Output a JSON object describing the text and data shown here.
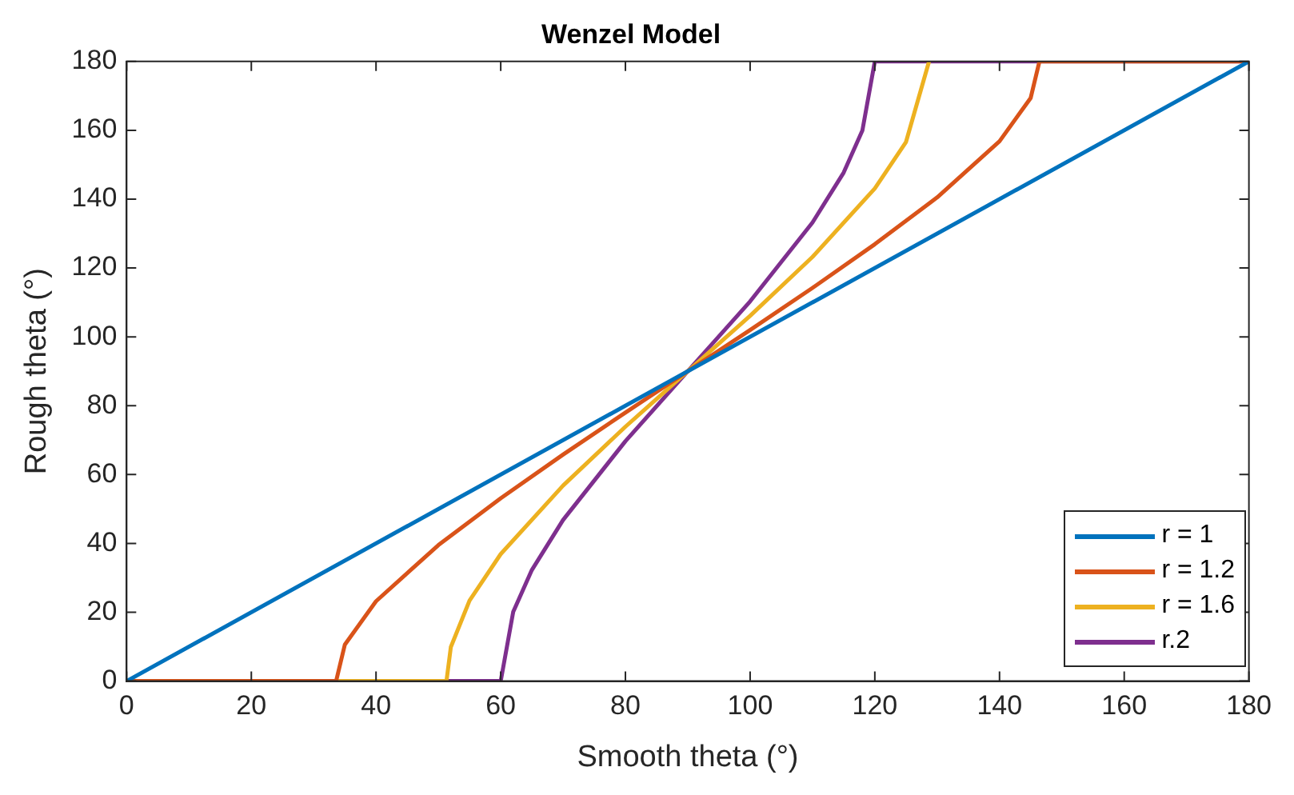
{
  "chart_data": {
    "type": "line",
    "title": "Wenzel Model",
    "xlabel": "Smooth theta (°)",
    "ylabel": "Rough theta (°)",
    "xlim": [
      0,
      180
    ],
    "ylim": [
      0,
      180
    ],
    "xticks": [
      0,
      20,
      40,
      60,
      80,
      100,
      120,
      140,
      160,
      180
    ],
    "yticks": [
      0,
      20,
      40,
      60,
      80,
      100,
      120,
      140,
      160,
      180
    ],
    "grid": false,
    "legend": "bottom right",
    "marker": "none",
    "line_style": "solid",
    "series": [
      {
        "name": "r = 1",
        "color": "#0072bd",
        "x": [
          0,
          180
        ],
        "values": [
          0,
          180
        ]
      },
      {
        "name": "r = 1.2",
        "color": "#d95319",
        "x": [
          0,
          33.6,
          35,
          40,
          50,
          60,
          70,
          80,
          90,
          100,
          110,
          120,
          130,
          140,
          145,
          146.4,
          180
        ],
        "values": [
          0,
          0,
          10.6,
          23.2,
          39.5,
          53.1,
          65.8,
          78,
          90,
          102,
          114.2,
          126.9,
          140.5,
          156.8,
          169.4,
          180,
          180
        ]
      },
      {
        "name": "r = 1.6",
        "color": "#edb120",
        "x": [
          0,
          51.3,
          52,
          55,
          60,
          70,
          80,
          90,
          100,
          110,
          120,
          125,
          128.7
        ],
        "values": [
          0,
          0,
          9.9,
          23.4,
          36.9,
          56.8,
          73.9,
          90,
          106.1,
          123.2,
          143.1,
          156.6,
          180
        ]
      },
      {
        "name": "r.2",
        "color": "#7e2f8e",
        "x": [
          0,
          60,
          62,
          65,
          70,
          80,
          90,
          100,
          110,
          115,
          118,
          120,
          180
        ],
        "values": [
          0,
          0,
          20.1,
          32.3,
          46.8,
          69.7,
          90,
          110.3,
          133.2,
          147.7,
          159.9,
          180,
          180
        ]
      }
    ]
  }
}
